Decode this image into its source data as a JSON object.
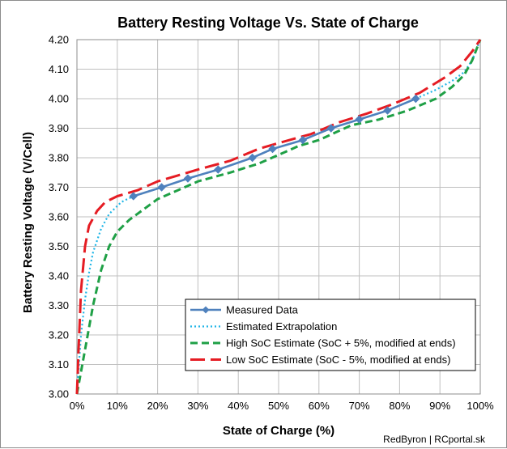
{
  "chart_data": {
    "type": "line",
    "title": "Battery Resting Voltage Vs. State of Charge",
    "xlabel": "State of Charge (%)",
    "ylabel": "Battery Resting Voltage (V/Cell)",
    "xlim": [
      0,
      100
    ],
    "ylim": [
      3.0,
      4.2
    ],
    "x_ticks": [
      "0%",
      "10%",
      "20%",
      "30%",
      "40%",
      "50%",
      "60%",
      "70%",
      "80%",
      "90%",
      "100%"
    ],
    "y_ticks": [
      "3.00",
      "3.10",
      "3.20",
      "3.30",
      "3.40",
      "3.50",
      "3.60",
      "3.70",
      "3.80",
      "3.90",
      "4.00",
      "4.10",
      "4.20"
    ],
    "grid": true,
    "legend_position": "bottom-right",
    "series": [
      {
        "name": "Measured Data",
        "color": "#4f81bd",
        "style": "solid-diamond",
        "points": [
          [
            14,
            3.67
          ],
          [
            21,
            3.7
          ],
          [
            27.5,
            3.73
          ],
          [
            35,
            3.76
          ],
          [
            43.5,
            3.8
          ],
          [
            48.5,
            3.83
          ],
          [
            56,
            3.86
          ],
          [
            63,
            3.9
          ],
          [
            70,
            3.93
          ],
          [
            77,
            3.96
          ],
          [
            84,
            4.0
          ]
        ]
      },
      {
        "name": "Estimated Extrapolation",
        "color": "#1fb5e6",
        "style": "dotted",
        "points": [
          [
            0,
            3.0
          ],
          [
            0.5,
            3.1
          ],
          [
            1,
            3.2
          ],
          [
            2,
            3.32
          ],
          [
            3,
            3.41
          ],
          [
            4,
            3.48
          ],
          [
            6,
            3.56
          ],
          [
            8,
            3.61
          ],
          [
            11,
            3.65
          ],
          [
            14,
            3.67
          ],
          [
            21,
            3.7
          ],
          [
            27.5,
            3.73
          ],
          [
            35,
            3.76
          ],
          [
            43.5,
            3.8
          ],
          [
            48.5,
            3.83
          ],
          [
            56,
            3.86
          ],
          [
            63,
            3.9
          ],
          [
            70,
            3.93
          ],
          [
            77,
            3.96
          ],
          [
            84,
            4.0
          ],
          [
            89,
            4.03
          ],
          [
            93,
            4.06
          ],
          [
            96,
            4.09
          ],
          [
            98,
            4.13
          ],
          [
            100,
            4.2
          ]
        ]
      },
      {
        "name": "High SoC Estimate (SoC + 5%, modified at ends)",
        "color": "#1fa046",
        "style": "dashed",
        "points": [
          [
            0,
            3.0
          ],
          [
            2,
            3.15
          ],
          [
            4,
            3.3
          ],
          [
            6,
            3.42
          ],
          [
            8,
            3.5
          ],
          [
            10,
            3.55
          ],
          [
            13,
            3.59
          ],
          [
            16,
            3.62
          ],
          [
            20,
            3.66
          ],
          [
            25,
            3.69
          ],
          [
            30,
            3.72
          ],
          [
            38,
            3.75
          ],
          [
            45,
            3.78
          ],
          [
            50,
            3.81
          ],
          [
            55,
            3.84
          ],
          [
            60,
            3.86
          ],
          [
            68,
            3.91
          ],
          [
            75,
            3.93
          ],
          [
            82,
            3.96
          ],
          [
            89,
            4.0
          ],
          [
            93,
            4.04
          ],
          [
            96,
            4.08
          ],
          [
            98,
            4.13
          ],
          [
            100,
            4.2
          ]
        ]
      },
      {
        "name": "Low SoC Estimate (SoC - 5%, modified at ends)",
        "color": "#e51c23",
        "style": "long-dashed",
        "points": [
          [
            0,
            3.0
          ],
          [
            0.4,
            3.15
          ],
          [
            1,
            3.35
          ],
          [
            2,
            3.5
          ],
          [
            3,
            3.57
          ],
          [
            5,
            3.62
          ],
          [
            7,
            3.65
          ],
          [
            10,
            3.67
          ],
          [
            15,
            3.69
          ],
          [
            20,
            3.72
          ],
          [
            25,
            3.74
          ],
          [
            30,
            3.76
          ],
          [
            38,
            3.79
          ],
          [
            45,
            3.83
          ],
          [
            50,
            3.85
          ],
          [
            58,
            3.88
          ],
          [
            65,
            3.92
          ],
          [
            72,
            3.95
          ],
          [
            78,
            3.98
          ],
          [
            85,
            4.02
          ],
          [
            91,
            4.07
          ],
          [
            95,
            4.11
          ],
          [
            98,
            4.16
          ],
          [
            100,
            4.2
          ]
        ]
      }
    ]
  },
  "credit": "RedByron | RCportal.sk"
}
